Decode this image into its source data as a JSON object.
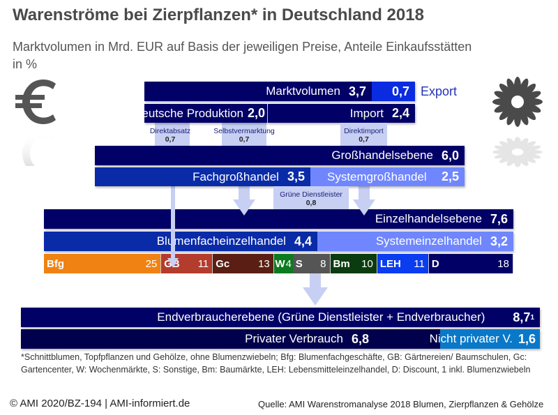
{
  "title": "Warenströme bei Zierpflanzen* in Deutschland 2018",
  "subtitle": "Marktvolumen in Mrd. EUR auf Basis der jeweiligen Preise, Anteile Einkaufsstätten in %",
  "colors": {
    "navy": "#000066",
    "mid": "#0a2ba8",
    "light": "#6f86ff",
    "export": "#0a2be0",
    "arrow": "#c7cff3"
  },
  "top": {
    "marktvolumen": {
      "label": "Marktvolumen",
      "value": "3,7"
    },
    "export": {
      "label": "Export",
      "value": "0,7"
    },
    "produktion": {
      "label": "deutsche Produktion",
      "value": "2,0"
    },
    "import": {
      "label": "Import",
      "value": "2,4"
    }
  },
  "flows": {
    "direktabsatz": {
      "label": "Direktabsatz",
      "value": "0,7"
    },
    "selbstvermarktung": {
      "label": "Selbstvermarktung",
      "value": "0,7"
    },
    "direktimport": {
      "label": "Direktimport",
      "value": "0,7"
    },
    "gruene": {
      "label": "Grüne Dienstleister",
      "value": "0,8"
    }
  },
  "grosshandel": {
    "total": {
      "label": "Großhandelsebene",
      "value": "6,0"
    },
    "fach": {
      "label": "Fachgroßhandel",
      "value": "3,5"
    },
    "system": {
      "label": "Systemgroßhandel",
      "value": "2,5"
    }
  },
  "einzelhandel": {
    "total": {
      "label": "Einzelhandelsebene",
      "value": "7,6"
    },
    "fach": {
      "label": "Blumenfacheinzelhandel",
      "value": "4,4"
    },
    "system": {
      "label": "Systemeinzelhandel",
      "value": "3,2"
    }
  },
  "shares": [
    {
      "label": "Bfg",
      "value": "25",
      "color": "#f08214"
    },
    {
      "label": "GB",
      "value": "11",
      "color": "#b43c2d"
    },
    {
      "label": "Gc",
      "value": "13",
      "color": "#5a1e14"
    },
    {
      "label": "W",
      "value": "4",
      "color": "#0c7a1e"
    },
    {
      "label": "S",
      "value": "8",
      "color": "#555555"
    },
    {
      "label": "Bm",
      "value": "10",
      "color": "#0a3c0f"
    },
    {
      "label": "LEH",
      "value": "11",
      "color": "#0a3cf0"
    },
    {
      "label": "D",
      "value": "18",
      "color": "#000066"
    }
  ],
  "endverbraucher": {
    "total": {
      "label": "Endverbraucherebene (Grüne Dienstleister + Endverbraucher)",
      "value": "8,7",
      "sup": "1"
    },
    "privat": {
      "label": "Privater Verbrauch",
      "value": "6,8"
    },
    "nichtprivat": {
      "label": "Nicht privater V.",
      "value": "1,6"
    }
  },
  "footnote": "*Schnittblumen, Topfpflanzen und Gehölze, ohne Blumenzwiebeln; Bfg: Blumenfachgeschäfte, GB: Gärtnereien/ Baumschulen, Gc: Gartencenter, W: Wochenmärkte, S: Sonstige, Bm: Baumärkte, LEH: Lebensmitteleinzelhandel, D: Discount, 1 inkl. Blumenzwiebeln",
  "copyright": "© AMI 2020/BZ-194 | AMI-informiert.de",
  "source": "Quelle: AMI Warenstromanalyse 2018 Blumen, Zierpflanzen & Gehölze"
}
